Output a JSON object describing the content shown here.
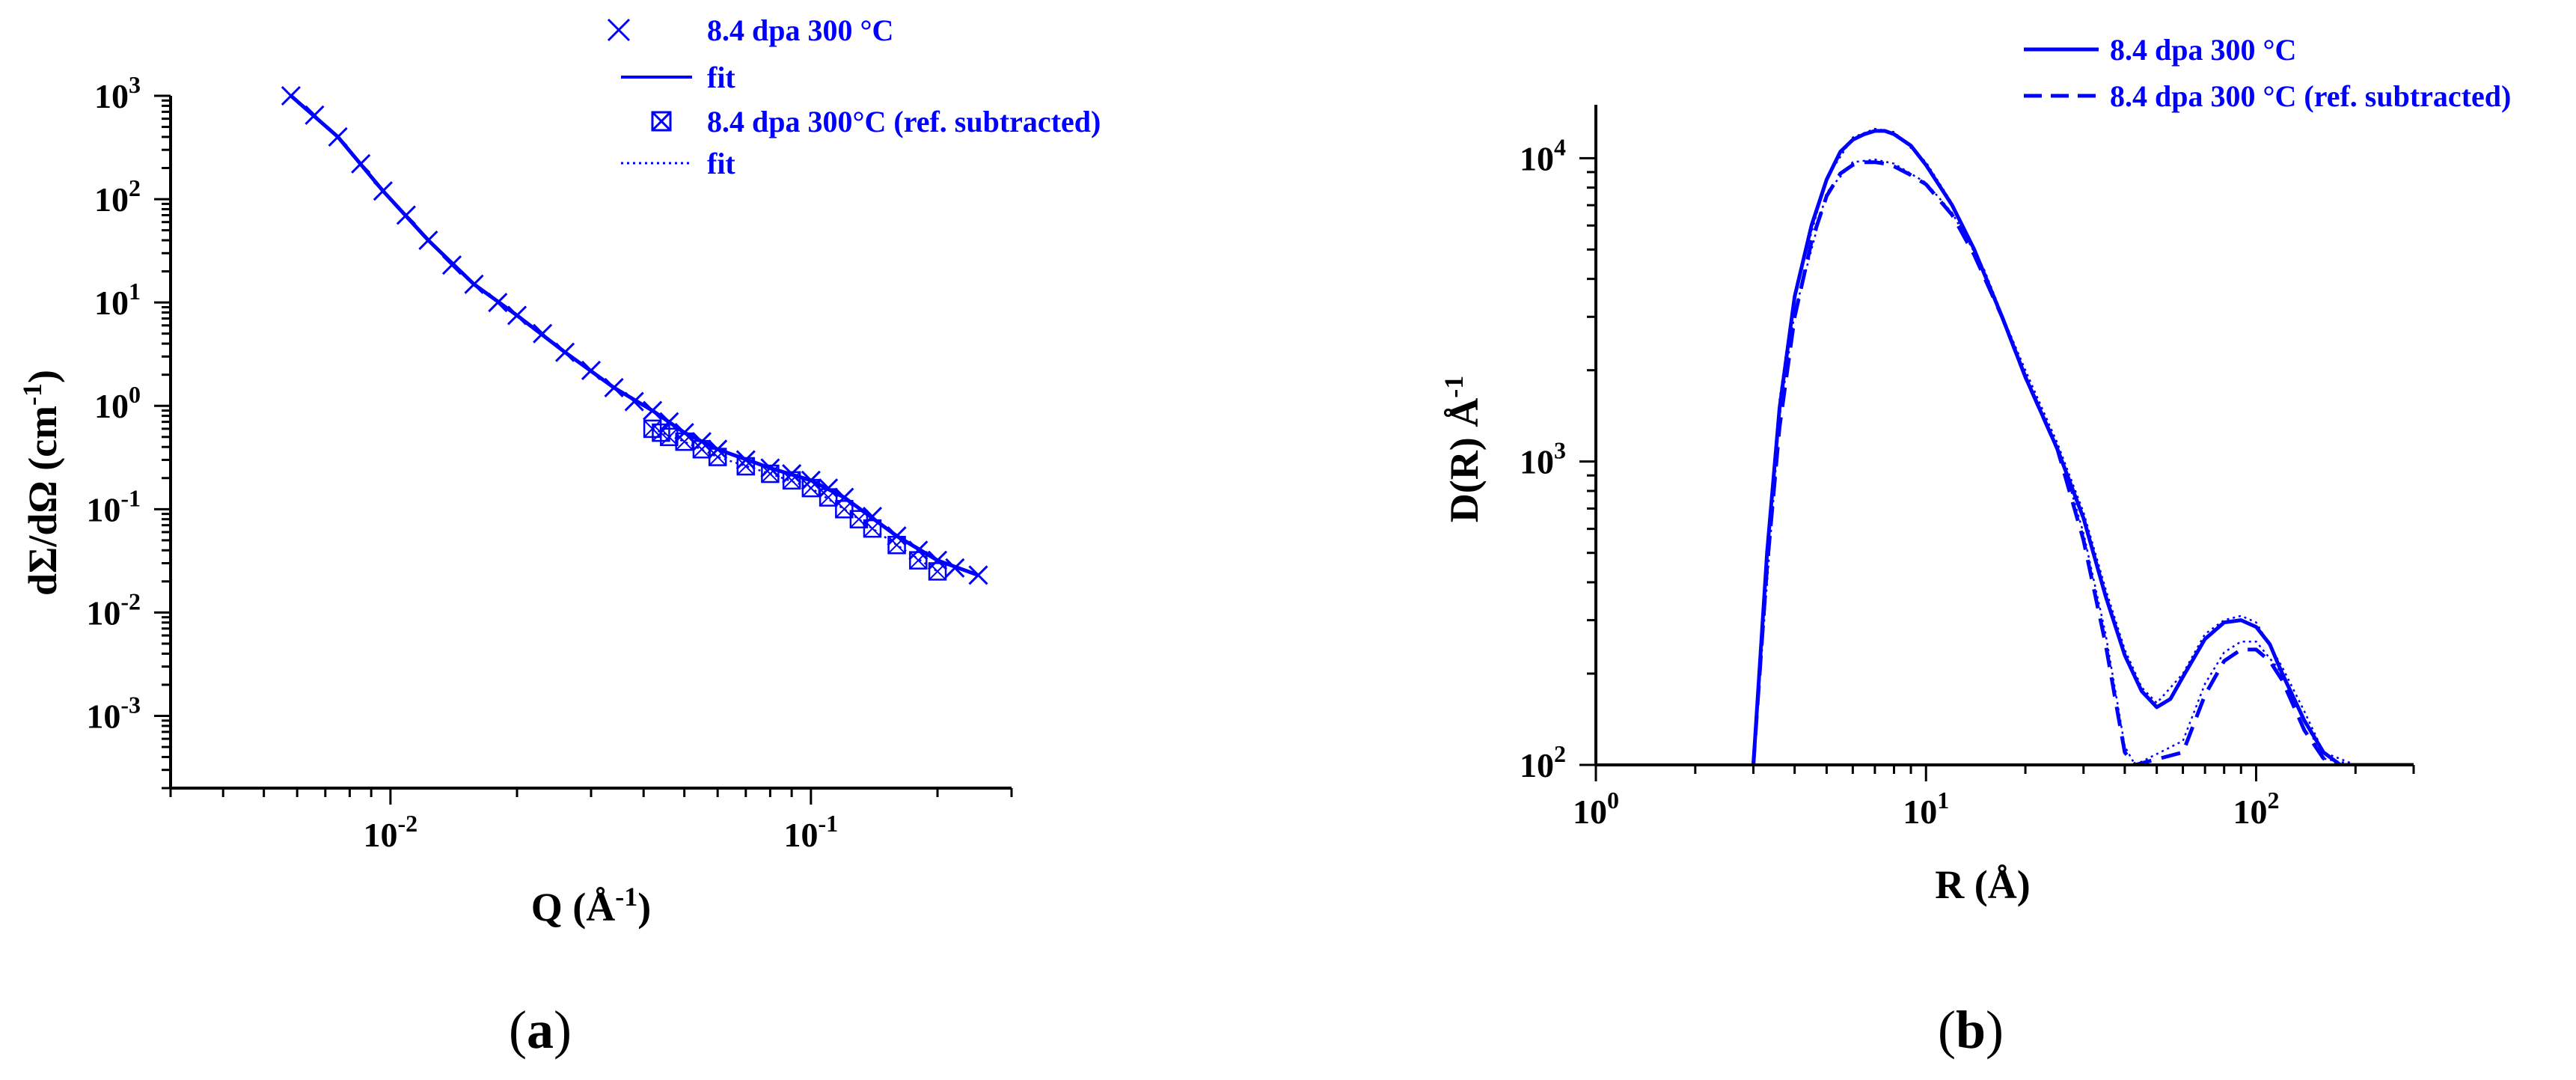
{
  "chart_data": [
    {
      "type": "scatter",
      "panel_label_parts": [
        "(",
        "a",
        ")"
      ],
      "x_scale": "log",
      "y_scale": "log",
      "xlim": [
        0.003,
        0.3
      ],
      "ylim": [
        0.0002,
        1000
      ],
      "xlabel_parts": [
        "Q (Å",
        "-1",
        ")"
      ],
      "ylabel_parts": [
        "dΣ/dΩ (cm",
        "-1",
        ")"
      ],
      "x_ticks": [
        {
          "value": 0.01,
          "base": "10",
          "exp": "-2"
        },
        {
          "value": 0.1,
          "base": "10",
          "exp": "-1"
        }
      ],
      "y_ticks": [
        {
          "value": 0.001,
          "base": "10",
          "exp": "-3"
        },
        {
          "value": 0.01,
          "base": "10",
          "exp": "-2"
        },
        {
          "value": 0.1,
          "base": "10",
          "exp": "-1"
        },
        {
          "value": 1,
          "base": "10",
          "exp": "0"
        },
        {
          "value": 10,
          "base": "10",
          "exp": "1"
        },
        {
          "value": 100,
          "base": "10",
          "exp": "2"
        },
        {
          "value": 1000,
          "base": "10",
          "exp": "3"
        }
      ],
      "legend_position": "top-right",
      "series": [
        {
          "name": "8.4 dpa 300 °C",
          "style": "cross-marker",
          "color": "#0000ff",
          "x": [
            0.0058,
            0.0066,
            0.0075,
            0.0085,
            0.0096,
            0.0109,
            0.0123,
            0.014,
            0.0158,
            0.018,
            0.02,
            0.023,
            0.026,
            0.03,
            0.034,
            0.038,
            0.042,
            0.046,
            0.05,
            0.055,
            0.06,
            0.07,
            0.08,
            0.09,
            0.1,
            0.11,
            0.12,
            0.14,
            0.16,
            0.18,
            0.2,
            0.22,
            0.25
          ],
          "y": [
            1000,
            650,
            400,
            220,
            120,
            70,
            40,
            23,
            15,
            10,
            7.5,
            5,
            3.3,
            2.2,
            1.5,
            1.1,
            0.9,
            0.7,
            0.55,
            0.45,
            0.38,
            0.3,
            0.25,
            0.22,
            0.19,
            0.16,
            0.13,
            0.085,
            0.055,
            0.04,
            0.032,
            0.027,
            0.023
          ]
        },
        {
          "name": "fit",
          "style": "solid-line",
          "color": "#0000ff",
          "x": [
            0.0058,
            0.0075,
            0.0096,
            0.0123,
            0.0158,
            0.02,
            0.026,
            0.034,
            0.042,
            0.05,
            0.06,
            0.08,
            0.1,
            0.12,
            0.16,
            0.2,
            0.25
          ],
          "y": [
            1000,
            400,
            120,
            40,
            15,
            7.5,
            3.3,
            1.5,
            0.9,
            0.55,
            0.38,
            0.25,
            0.19,
            0.13,
            0.055,
            0.032,
            0.023
          ]
        },
        {
          "name": "8.4 dpa 300°C (ref. subtracted)",
          "style": "box-cross-marker",
          "color": "#0000ff",
          "x": [
            0.042,
            0.044,
            0.046,
            0.05,
            0.055,
            0.06,
            0.07,
            0.08,
            0.09,
            0.1,
            0.11,
            0.12,
            0.13,
            0.14,
            0.16,
            0.18,
            0.2
          ],
          "y": [
            0.6,
            0.55,
            0.5,
            0.45,
            0.38,
            0.32,
            0.26,
            0.22,
            0.19,
            0.16,
            0.13,
            0.1,
            0.08,
            0.065,
            0.045,
            0.032,
            0.025
          ]
        },
        {
          "name": "fit",
          "style": "dotted-line",
          "color": "#0000ff",
          "x": [
            0.042,
            0.05,
            0.06,
            0.08,
            0.1,
            0.12,
            0.14,
            0.16,
            0.2
          ],
          "y": [
            0.6,
            0.45,
            0.32,
            0.22,
            0.16,
            0.1,
            0.065,
            0.045,
            0.025
          ]
        }
      ]
    },
    {
      "type": "line",
      "panel_label_parts": [
        "(",
        "b",
        ")"
      ],
      "x_scale": "log",
      "y_scale": "log",
      "xlim": [
        1,
        300
      ],
      "ylim": [
        100,
        15000
      ],
      "xlabel": "R  (Å)",
      "ylabel_parts": [
        "D(R) Å",
        "-1"
      ],
      "x_ticks": [
        {
          "value": 1,
          "base": "10",
          "exp": "0"
        },
        {
          "value": 10,
          "base": "10",
          "exp": "1"
        },
        {
          "value": 100,
          "base": "10",
          "exp": "2"
        }
      ],
      "y_ticks": [
        {
          "value": 100,
          "base": "10",
          "exp": "2"
        },
        {
          "value": 1000,
          "base": "10",
          "exp": "3"
        },
        {
          "value": 10000,
          "base": "10",
          "exp": "4"
        }
      ],
      "legend_position": "top-right",
      "series": [
        {
          "name": "8.4 dpa 300 °C",
          "style": "solid-line",
          "color": "#0000ff",
          "x": [
            3,
            3.3,
            3.6,
            4,
            4.5,
            5,
            5.5,
            6,
            6.5,
            7,
            7.5,
            8,
            9,
            10,
            12,
            14,
            17,
            20,
            25,
            30,
            35,
            40,
            45,
            50,
            55,
            60,
            70,
            80,
            90,
            100,
            110,
            120,
            140,
            160,
            180,
            200,
            300
          ],
          "y": [
            100,
            500,
            1500,
            3500,
            6000,
            8500,
            10500,
            11500,
            12000,
            12300,
            12300,
            12000,
            11000,
            9500,
            7000,
            5000,
            3000,
            1900,
            1100,
            650,
            360,
            230,
            175,
            155,
            165,
            195,
            260,
            295,
            300,
            285,
            250,
            200,
            140,
            110,
            100,
            100,
            100
          ]
        },
        {
          "name": "8.4 dpa 300 °C (ref. subtracted)",
          "style": "dashed-line",
          "color": "#0000ff",
          "x": [
            3,
            3.3,
            3.6,
            4,
            4.5,
            5,
            5.5,
            6,
            6.5,
            7,
            7.5,
            8,
            9,
            10,
            12,
            14,
            17,
            20,
            25,
            30,
            35,
            38,
            40,
            43,
            60,
            70,
            80,
            90,
            100,
            110,
            120,
            140,
            160,
            180,
            200,
            300
          ],
          "y": [
            100,
            450,
            1300,
            3000,
            5300,
            7500,
            8900,
            9500,
            9700,
            9700,
            9600,
            9400,
            8800,
            8200,
            6500,
            4800,
            3000,
            1900,
            1100,
            550,
            250,
            150,
            110,
            100,
            110,
            170,
            220,
            240,
            240,
            220,
            190,
            130,
            105,
            100,
            100,
            100
          ]
        },
        {
          "name": "",
          "style": "dotted-line",
          "color": "#0000ff",
          "x": [
            3,
            3.6,
            4,
            5,
            6,
            7,
            8,
            10,
            12,
            15,
            20,
            25,
            30,
            35,
            40,
            45,
            50,
            60,
            70,
            80,
            90,
            100,
            120,
            140,
            160,
            200
          ],
          "y": [
            100,
            1600,
            3600,
            8600,
            11700,
            12500,
            12200,
            9700,
            7100,
            4200,
            2000,
            1150,
            680,
            380,
            240,
            180,
            160,
            200,
            270,
            300,
            310,
            295,
            210,
            150,
            110,
            100
          ]
        },
        {
          "name": "",
          "style": "dotted-line",
          "color": "#0000ff",
          "x": [
            3,
            3.6,
            4,
            5,
            6,
            7,
            8,
            10,
            12,
            15,
            20,
            25,
            30,
            35,
            38,
            40,
            43,
            60,
            70,
            80,
            90,
            100,
            120,
            140,
            160,
            200
          ],
          "y": [
            100,
            1400,
            3100,
            7700,
            9700,
            9900,
            9600,
            8300,
            6600,
            4300,
            1950,
            1150,
            580,
            270,
            160,
            115,
            100,
            120,
            185,
            235,
            255,
            255,
            200,
            140,
            105,
            100
          ]
        }
      ]
    }
  ]
}
